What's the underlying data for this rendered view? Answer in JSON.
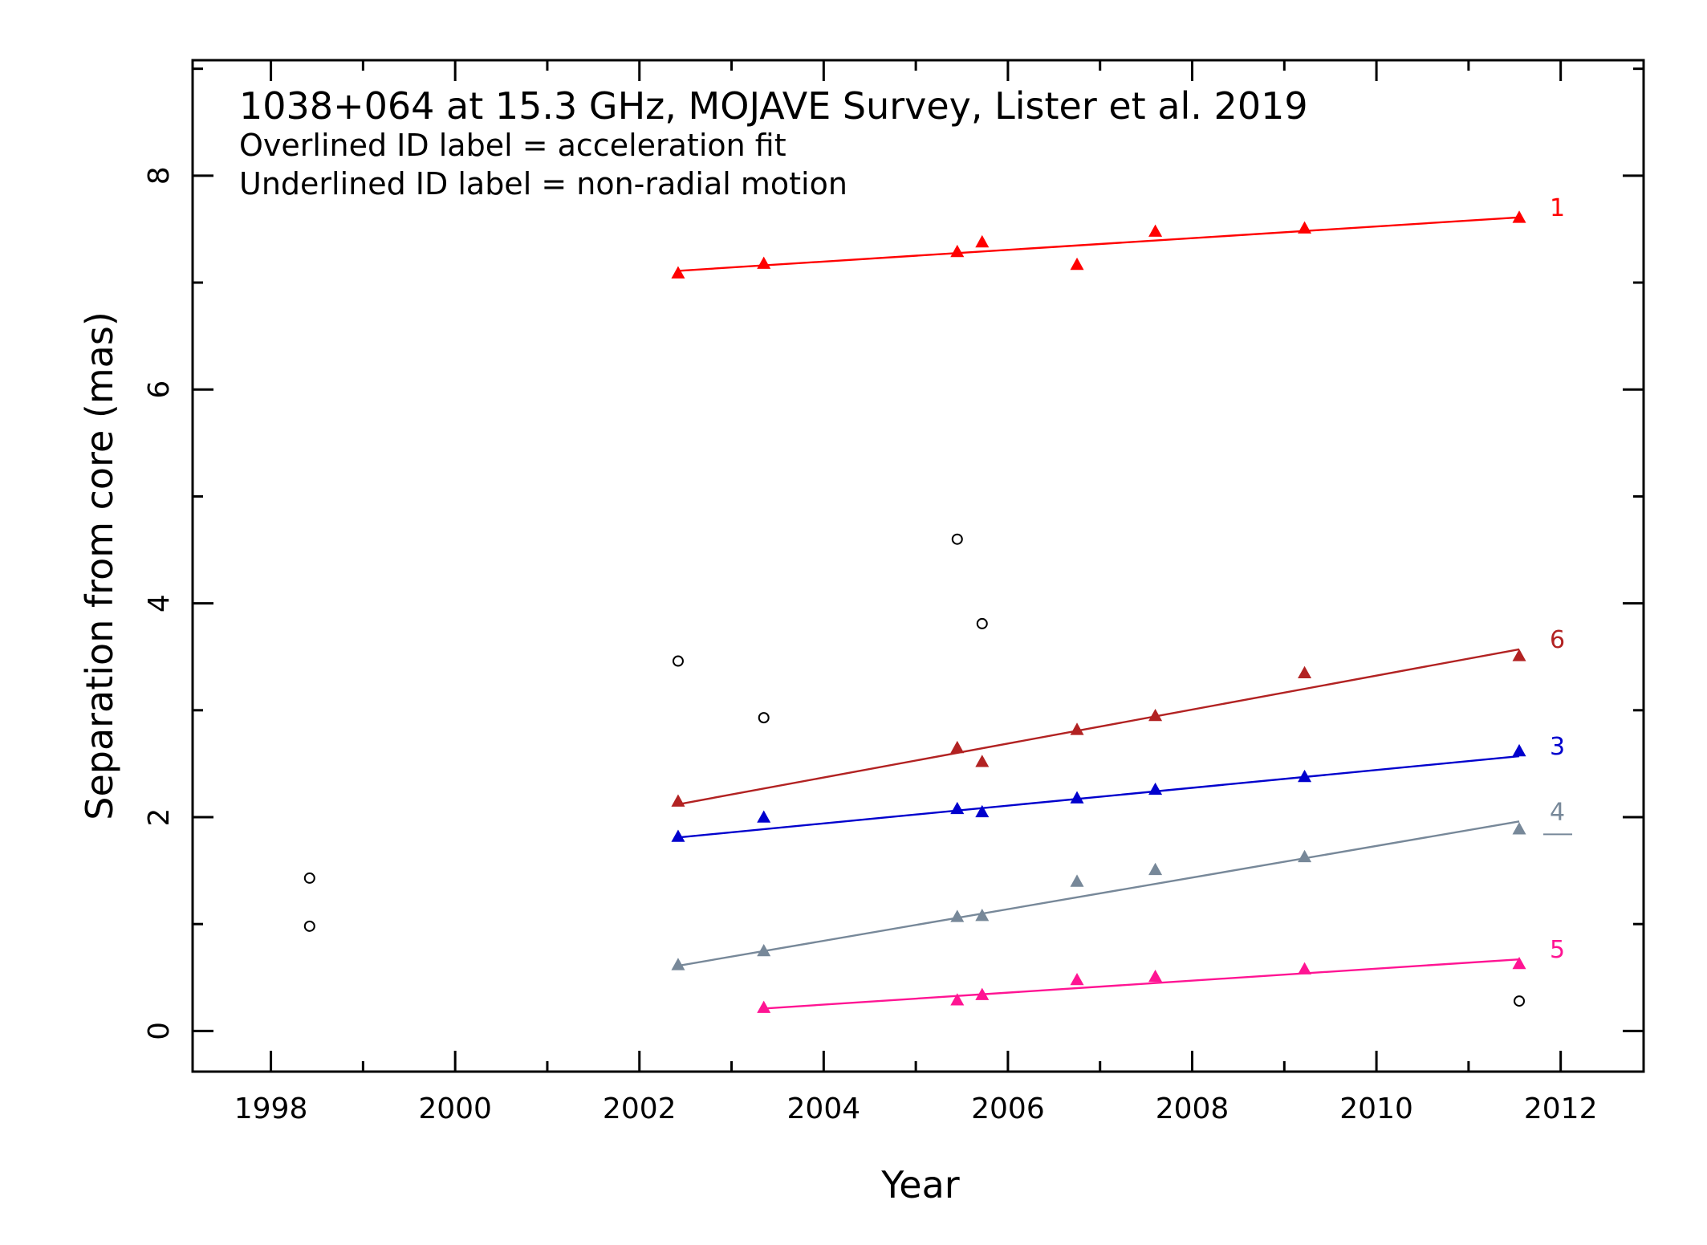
{
  "chart_data": {
    "type": "scatter",
    "title": "1038+064 at 15.3 GHz, MOJAVE Survey, Lister et al. 2019",
    "annotations": [
      "Overlined ID label = acceleration fit",
      "Underlined ID label = non-radial motion"
    ],
    "xlabel": "Year",
    "ylabel": "Separation from core (mas)",
    "xlim": [
      1997.15,
      2012.9
    ],
    "ylim": [
      -0.38,
      9.08
    ],
    "x_ticks": [
      1998,
      2000,
      2002,
      2004,
      2006,
      2008,
      2010,
      2012
    ],
    "y_ticks": [
      0,
      2,
      4,
      6,
      8
    ],
    "grid": false,
    "series": [
      {
        "name": "1",
        "color": "#ff0000",
        "marker": "triangle",
        "x": [
          2002.42,
          2003.35,
          2005.45,
          2005.72,
          2006.75,
          2007.6,
          2009.22,
          2011.55
        ],
        "y": [
          7.09,
          7.18,
          7.29,
          7.38,
          7.17,
          7.48,
          7.51,
          7.61
        ],
        "fit": [
          [
            2002.42,
            7.11
          ],
          [
            2011.55,
            7.61
          ]
        ]
      },
      {
        "name": "6",
        "color": "#b22222",
        "marker": "triangle",
        "x": [
          2002.42,
          2005.45,
          2005.72,
          2006.75,
          2007.6,
          2009.22,
          2011.55
        ],
        "y": [
          2.15,
          2.65,
          2.52,
          2.82,
          2.95,
          3.35,
          3.51
        ],
        "fit": [
          [
            2002.42,
            2.12
          ],
          [
            2011.55,
            3.57
          ]
        ]
      },
      {
        "name": "3",
        "color": "#0000cd",
        "marker": "triangle",
        "x": [
          2002.42,
          2003.35,
          2005.45,
          2005.72,
          2006.75,
          2007.6,
          2009.22,
          2011.55
        ],
        "y": [
          1.82,
          2.0,
          2.08,
          2.05,
          2.18,
          2.26,
          2.38,
          2.62
        ],
        "fit": [
          [
            2002.42,
            1.81
          ],
          [
            2011.55,
            2.57
          ]
        ]
      },
      {
        "name": "4",
        "color": "#778899",
        "marker": "triangle",
        "underlined": true,
        "x": [
          2002.42,
          2003.35,
          2005.45,
          2005.72,
          2006.75,
          2007.6,
          2009.22,
          2011.55
        ],
        "y": [
          0.62,
          0.75,
          1.07,
          1.08,
          1.4,
          1.51,
          1.63,
          1.89
        ],
        "fit": [
          [
            2002.42,
            0.61
          ],
          [
            2011.55,
            1.96
          ]
        ]
      },
      {
        "name": "5",
        "color": "#ff1493",
        "marker": "triangle",
        "x": [
          2003.35,
          2005.45,
          2005.72,
          2006.75,
          2007.6,
          2009.22,
          2011.55
        ],
        "y": [
          0.22,
          0.29,
          0.34,
          0.48,
          0.51,
          0.58,
          0.63
        ],
        "fit": [
          [
            2003.35,
            0.21
          ],
          [
            2011.55,
            0.67
          ]
        ]
      },
      {
        "color": "#000000",
        "marker": "open-circle",
        "x": [
          1998.42,
          1998.42,
          2002.42,
          2003.35,
          2005.45,
          2005.72,
          2011.55
        ],
        "y": [
          1.43,
          0.98,
          3.46,
          2.93,
          4.6,
          3.81,
          0.28
        ]
      }
    ]
  }
}
